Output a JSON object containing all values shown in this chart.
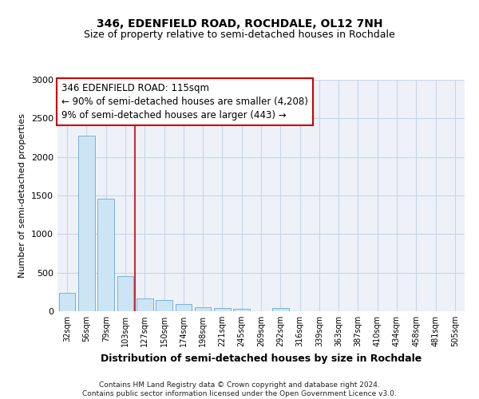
{
  "title1": "346, EDENFIELD ROAD, ROCHDALE, OL12 7NH",
  "title2": "Size of property relative to semi-detached houses in Rochdale",
  "xlabel": "Distribution of semi-detached houses by size in Rochdale",
  "ylabel": "Number of semi-detached properties",
  "footnote": "Contains HM Land Registry data © Crown copyright and database right 2024.\nContains public sector information licensed under the Open Government Licence v3.0.",
  "categories": [
    "32sqm",
    "56sqm",
    "79sqm",
    "103sqm",
    "127sqm",
    "150sqm",
    "174sqm",
    "198sqm",
    "221sqm",
    "245sqm",
    "269sqm",
    "292sqm",
    "316sqm",
    "339sqm",
    "363sqm",
    "387sqm",
    "410sqm",
    "434sqm",
    "458sqm",
    "481sqm",
    "505sqm"
  ],
  "values": [
    240,
    2280,
    1460,
    460,
    170,
    145,
    90,
    55,
    45,
    35,
    0,
    40,
    0,
    0,
    0,
    0,
    0,
    0,
    0,
    0,
    0
  ],
  "bar_color": "#cce5f5",
  "bar_edge_color": "#7ab0d8",
  "ref_line_x": 3.5,
  "ref_line_label": "346 EDENFIELD ROAD: 115sqm",
  "annotation_line1": "← 90% of semi-detached houses are smaller (4,208)",
  "annotation_line2": "9% of semi-detached houses are larger (443) →",
  "ylim": [
    0,
    3000
  ],
  "yticks": [
    0,
    500,
    1000,
    1500,
    2000,
    2500,
    3000
  ],
  "grid_color": "#c8d4e8",
  "background_color": "#eef2f8",
  "box_color": "#cc0000",
  "title1_fontsize": 10,
  "title2_fontsize": 9,
  "xlabel_fontsize": 9,
  "ylabel_fontsize": 8,
  "annot_fontsize": 8.5
}
